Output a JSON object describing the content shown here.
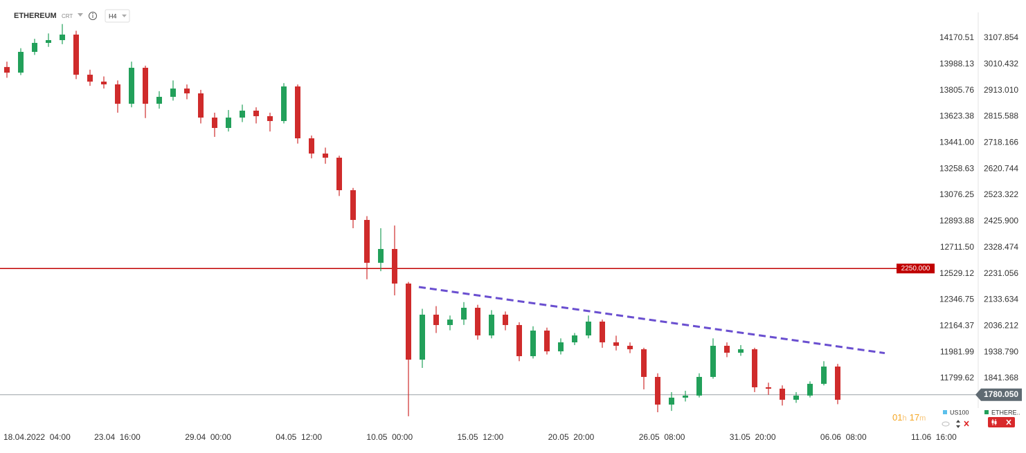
{
  "header": {
    "symbol": "ETHEREUM",
    "type": "CRT",
    "interval": "H4"
  },
  "chart_data": {
    "type": "candlestick",
    "open": [
      3000,
      2979.1,
      3056.4,
      3089.8,
      3100.1,
      3120.7,
      2971.4,
      2945.7,
      2935.4,
      2863.3,
      2997.2,
      2863.3,
      2889.0,
      2919.9,
      2901.9,
      2811.8,
      2773.2,
      2811.8,
      2837.6,
      2817.0,
      2798.9,
      2927.7,
      2734.6,
      2677.9,
      2662.5,
      2541.5,
      2430.8,
      2271.3,
      2322.7,
      2194.0,
      1910.8,
      2078.2,
      2039.6,
      2060.0,
      2103.9,
      2000.9,
      2078.2,
      2039.6,
      1923.7,
      2019.0,
      1941.7,
      1975.2,
      2000.9,
      2052.4,
      1975.2,
      1962.4,
      1949.5,
      1846.5,
      1743.5,
      1769.3,
      1777.0,
      1846.5,
      1962.4,
      1936.6,
      1949.5,
      1807.9,
      1802.7,
      1761.5,
      1777.0,
      1820.8,
      1885.1
    ],
    "high": [
      3020,
      3070,
      3105,
      3125,
      3160,
      3135,
      2990,
      2965,
      2950,
      3020,
      3005,
      2910,
      2950,
      2935,
      2915,
      2830,
      2840,
      2860,
      2850,
      2830,
      2940,
      2935,
      2745,
      2700,
      2670,
      2550,
      2445,
      2400,
      2410,
      2200,
      2100,
      2110,
      2075,
      2125,
      2115,
      2095,
      2090,
      2050,
      2035,
      2030,
      1990,
      2010,
      2075,
      2060,
      2000,
      1975,
      1955,
      1860,
      1790,
      1795,
      1860,
      1990,
      1975,
      1965,
      1955,
      1825,
      1815,
      1790,
      1830,
      1905,
      1895
    ],
    "low": [
      2960,
      2970,
      3045,
      3075,
      3085,
      2955,
      2930,
      2920,
      2830,
      2850,
      2810,
      2845,
      2875,
      2880,
      2790,
      2740,
      2760,
      2795,
      2790,
      2760,
      2790,
      2715,
      2660,
      2640,
      2520,
      2400,
      2210,
      2240,
      2150,
      1700,
      1880,
      2010,
      2020,
      2040,
      1985,
      1990,
      2020,
      1905,
      1915,
      1930,
      1930,
      1965,
      1990,
      1955,
      1945,
      1935,
      1800,
      1715,
      1720,
      1755,
      1770,
      1840,
      1920,
      1925,
      1790,
      1780,
      1740,
      1750,
      1770,
      1815,
      1745
    ],
    "close": [
      2979.1,
      3056.4,
      3089.8,
      3100.1,
      3120.7,
      2971.4,
      2945.7,
      2935.4,
      2863.3,
      2997.2,
      2863.3,
      2889.0,
      2919.9,
      2901.9,
      2811.8,
      2773.2,
      2811.8,
      2837.6,
      2817.0,
      2798.9,
      2927.7,
      2734.6,
      2677.9,
      2662.5,
      2541.5,
      2430.8,
      2271.3,
      2322.7,
      2194.0,
      1910.8,
      2078.2,
      2039.6,
      2060.0,
      2103.9,
      2000.9,
      2078.2,
      2039.6,
      1923.7,
      2019.0,
      1941.7,
      1975.2,
      2000.9,
      2052.4,
      1975.2,
      1962.4,
      1949.5,
      1846.5,
      1743.5,
      1769.3,
      1777.0,
      1846.5,
      1962.4,
      1936.6,
      1949.5,
      1807.9,
      1802.7,
      1761.5,
      1777.0,
      1820.8,
      1885.1,
      1761.5
    ],
    "colors": {
      "up": "#22a05a",
      "down": "#cf2b2b"
    },
    "xtick_labels": [
      "18.04.2022  04:00",
      "23.04  16:00",
      "29.04  00:00",
      "04.05  12:00",
      "10.05  00:00",
      "15.05  12:00",
      "20.05  20:00",
      "26.05  08:00",
      "31.05  20:00",
      "06.06  08:00",
      "11.06  16:00"
    ],
    "ylim": [
      1653.4,
      3223.7
    ],
    "yticks": [
      3107.854,
      3010.432,
      {
        "value": 2913.01,
        "label": "2913.010"
      },
      2815.588,
      2718.166,
      2620.744,
      2523.322,
      {
        "value": 2425.9,
        "label": "2425.900"
      },
      2328.474,
      2231.056,
      2133.634,
      2036.212,
      {
        "value": 1938.79,
        "label": "1938.790"
      },
      1841.368
    ],
    "y2lim": [
      11447.7,
      14387.4
    ],
    "y2ticks": [
      14170.51,
      13988.13,
      13805.76,
      13623.38,
      {
        "value": 13441,
        "label": "13441.00"
      },
      13258.63,
      13076.25,
      12893.88,
      {
        "value": 12711.5,
        "label": "12711.50"
      },
      12529.12,
      12346.75,
      12164.37,
      11981.99,
      11799.62
    ],
    "hline": {
      "value": 2250,
      "label": "2250.000",
      "color": "#c00000"
    },
    "last_price": {
      "value": 1780.05,
      "label": "1780.050",
      "color": "#5f6a72"
    },
    "trendline": {
      "start": 2181.2,
      "end": 1935.1,
      "color": "#6a4fd0"
    },
    "legend": [
      {
        "name": "US100",
        "color": "#5bc0eb"
      },
      {
        "name": "ETHERE..",
        "color": "#22a05a"
      }
    ],
    "timer": {
      "hours": "01",
      "h": "h",
      "minutes": "17",
      "m": "m"
    }
  }
}
